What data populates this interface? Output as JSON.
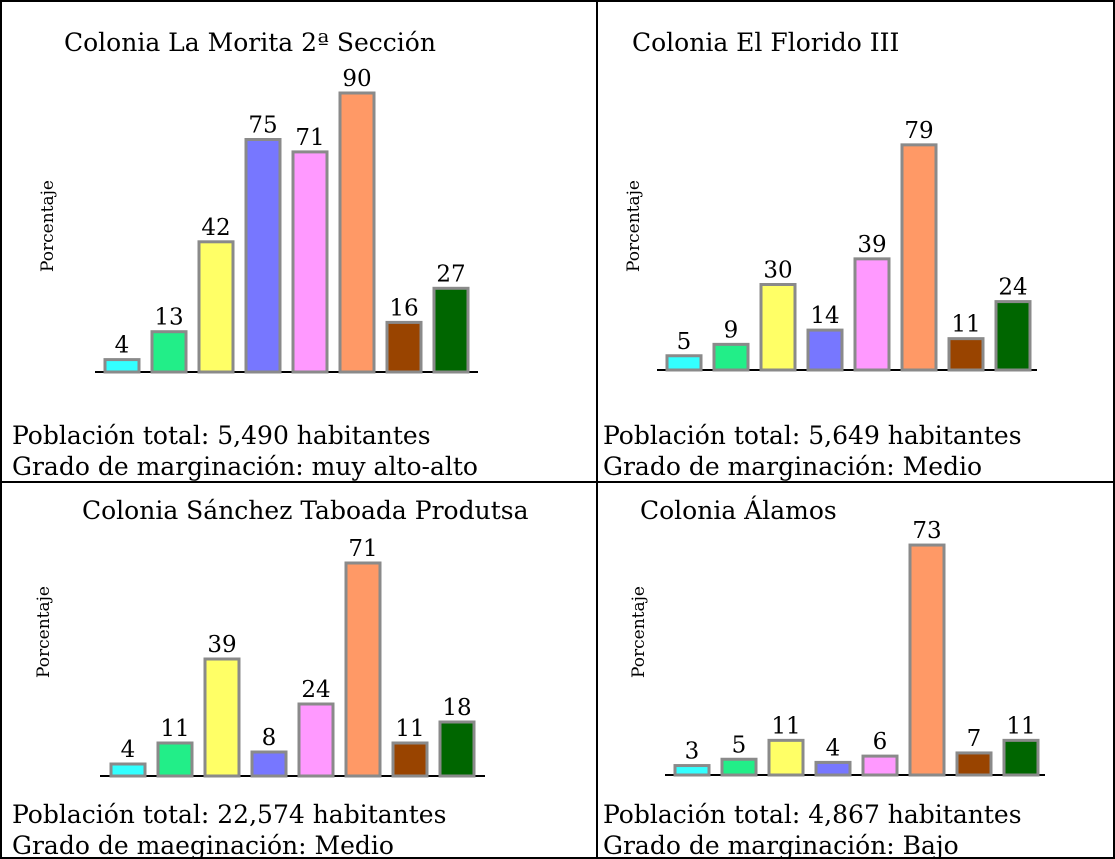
{
  "chart_data": [
    {
      "type": "bar",
      "title": "Colonia La Morita 2ª Sección",
      "ylabel": "Porcentaje",
      "values": [
        4,
        13,
        42,
        75,
        71,
        90,
        16,
        27
      ],
      "info": [
        "Población total: 5,490 habitantes",
        "Grado de marginación: muy alto-alto"
      ]
    },
    {
      "type": "bar",
      "title": "Colonia El Florido III",
      "ylabel": "Porcentaje",
      "values": [
        5,
        9,
        30,
        14,
        39,
        79,
        11,
        24
      ],
      "info": [
        "Población total: 5,649 habitantes",
        "Grado de marginación: Medio"
      ]
    },
    {
      "type": "bar",
      "title": "Colonia Sánchez Taboada Produtsa",
      "ylabel": "Porcentaje",
      "values": [
        4,
        11,
        39,
        8,
        24,
        71,
        11,
        18
      ],
      "info": [
        "Población total: 22,574 habitantes",
        "Grado de maeginación: Medio"
      ]
    },
    {
      "type": "bar",
      "title": "Colonia Álamos",
      "ylabel": "Porcentaje",
      "values": [
        3,
        5,
        11,
        4,
        6,
        73,
        7,
        11
      ],
      "info": [
        "Población total: 4,867 habitantes",
        "Grado de marginación: Bajo"
      ]
    }
  ],
  "colors": [
    "#33ffff",
    "#22ee88",
    "#ffff66",
    "#7777ff",
    "#ff99ff",
    "#ff9966",
    "#994400",
    "#006600"
  ]
}
